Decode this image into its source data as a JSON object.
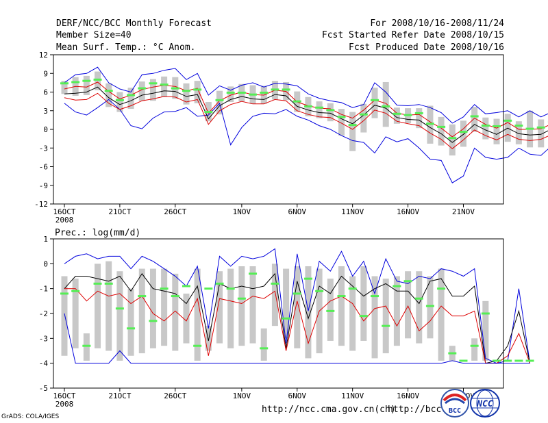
{
  "header": {
    "title": "DERF/NCC/BCC Monthly Forecast",
    "member_size": "Member Size=40",
    "variable": "Mean Surf. Temp.: °C Anom.",
    "period": "For 2008/10/16-2008/11/24",
    "started": "Fcst Started Refer Date 2008/10/15",
    "produced": "Fcst Produced Date 2008/10/16"
  },
  "footer": {
    "url1": "http://ncc.cma.gov.cn(ch)",
    "url2": "http://bcc.c",
    "credit": "GrADS: COLA/IGES",
    "logo1_text": "BCC",
    "logo2_text": "NCC"
  },
  "colors": {
    "max_line": "#0000dd",
    "min_line": "#dd0000",
    "mean_line": "#000000",
    "median_marker": "#55ee55",
    "box": "#c8c8c8"
  },
  "chart_data": [
    {
      "type": "box-line",
      "title": "Mean Surf. Temp.: °C Anom.",
      "x_tick_labels": [
        "16OCT",
        "21OCT",
        "26OCT",
        "1NOV",
        "6NOV",
        "11NOV",
        "16NOV",
        "21NOV"
      ],
      "x_year_label": "2008",
      "x_tick_days": [
        0,
        5,
        10,
        16,
        21,
        26,
        31,
        36
      ],
      "days": 40,
      "y_ticks": [
        12,
        9,
        6,
        3,
        0,
        -3,
        -6,
        -9,
        -12
      ],
      "ylim": [
        -12,
        12
      ],
      "series": [
        {
          "name": "max",
          "values": [
            4.2,
            2.8,
            2.3,
            3.5,
            4.8,
            3.2,
            0.6,
            0.1,
            1.8,
            2.8,
            2.9,
            3.5,
            2.1,
            2.3,
            4.2,
            -2.5,
            0.3,
            2.1,
            2.6,
            2.5,
            3.2,
            2.1,
            1.5,
            0.6,
            0.0,
            -1.0,
            -1.8,
            -2.1,
            -3.8,
            -1.2,
            -2.0,
            -1.5,
            -3.0,
            -4.8,
            -5.0,
            -8.6,
            -7.5,
            -3.0,
            -4.5,
            -4.8,
            -4.5,
            -3.0,
            -4.0,
            -4.2,
            -2.6
          ]
        },
        {
          "name": "max_env",
          "values": [
            7.5,
            8.8,
            9.0,
            10.0,
            7.5,
            6.5,
            6.0,
            8.8,
            9.0,
            9.5,
            9.8,
            8.0,
            9.0,
            5.5,
            7.0,
            6.3,
            7.1,
            7.5,
            6.8,
            7.4,
            7.3,
            7.0,
            5.7,
            5.0,
            4.6,
            4.3,
            3.5,
            4.0,
            7.5,
            6.0,
            3.9,
            3.8,
            4.0,
            3.5,
            2.7,
            1.0,
            2.0,
            4.0,
            2.5,
            2.7,
            3.0,
            2.0,
            3.0,
            2.0,
            2.8
          ]
        },
        {
          "name": "upper",
          "values": [
            6.5,
            6.9,
            6.8,
            7.6,
            6.1,
            4.9,
            5.5,
            6.4,
            6.8,
            7.1,
            6.9,
            6.2,
            6.6,
            2.6,
            4.6,
            5.5,
            6.0,
            5.6,
            5.5,
            6.3,
            6.1,
            4.4,
            3.8,
            3.4,
            3.3,
            2.4,
            1.8,
            3.1,
            4.7,
            4.2,
            2.6,
            2.3,
            2.4,
            1.2,
            0.2,
            -1.2,
            0.1,
            1.8,
            0.8,
            0.2,
            1.1,
            0.0,
            0.0,
            0.1,
            0.9
          ]
        },
        {
          "name": "mean",
          "values": [
            5.7,
            5.8,
            6.0,
            6.8,
            5.1,
            4.0,
            4.6,
            5.5,
            5.8,
            6.2,
            6.1,
            5.3,
            5.6,
            1.7,
            3.8,
            4.8,
            5.3,
            4.9,
            4.8,
            5.6,
            5.4,
            3.7,
            3.1,
            2.7,
            2.6,
            1.7,
            0.9,
            2.3,
            3.9,
            3.4,
            1.9,
            1.6,
            1.5,
            0.3,
            -0.7,
            -2.1,
            -0.8,
            0.8,
            -0.1,
            -0.8,
            0.2,
            -0.7,
            -0.9,
            -0.8,
            0.1
          ]
        },
        {
          "name": "lower",
          "values": [
            5.1,
            4.7,
            4.8,
            5.8,
            4.2,
            3.2,
            3.8,
            4.6,
            4.9,
            5.3,
            5.2,
            4.4,
            4.8,
            0.8,
            3.0,
            4.0,
            4.5,
            4.1,
            4.1,
            4.8,
            4.6,
            3.0,
            2.4,
            2.0,
            1.9,
            1.0,
            0.0,
            1.4,
            3.1,
            2.6,
            1.3,
            0.9,
            0.6,
            -0.6,
            -1.6,
            -3.1,
            -1.7,
            -0.1,
            -1.0,
            -1.7,
            -0.8,
            -1.6,
            -1.8,
            -1.6,
            -0.8
          ]
        },
        {
          "name": "median",
          "values": [
            7.4,
            7.6,
            7.8,
            8.0,
            6.2,
            4.7,
            5.5,
            6.6,
            7.4,
            7.2,
            6.6,
            6.2,
            6.4,
            2.8,
            4.7,
            5.9,
            5.9,
            5.6,
            5.9,
            6.4,
            6.4,
            4.5,
            3.7,
            3.5,
            3.1,
            2.0,
            0.7,
            2.4,
            4.7,
            3.7,
            2.5,
            2.3,
            2.6,
            0.9,
            0.4,
            -1.4,
            -0.4,
            2.1,
            0.6,
            0.5,
            1.4,
            0.6,
            0.1,
            0.3,
            1.2
          ]
        },
        {
          "name": "box_top",
          "values": [
            7.8,
            8.4,
            8.6,
            9.3,
            7.4,
            6.0,
            6.7,
            7.7,
            8.1,
            8.5,
            8.4,
            7.4,
            7.8,
            4.4,
            6.2,
            6.9,
            7.3,
            7.1,
            7.0,
            7.8,
            7.6,
            6.1,
            5.2,
            4.5,
            4.2,
            3.3,
            2.8,
            4.1,
            6.7,
            7.6,
            3.5,
            3.4,
            3.4,
            3.8,
            2.0,
            0.8,
            1.4,
            3.6,
            1.9,
            1.7,
            2.5,
            1.3,
            3.0,
            1.6,
            2.0
          ]
        },
        {
          "name": "box_bottom",
          "values": [
            5.7,
            5.4,
            5.5,
            6.3,
            3.6,
            2.8,
            3.3,
            4.6,
            4.6,
            5.2,
            4.9,
            4.0,
            4.2,
            1.3,
            2.4,
            4.4,
            4.5,
            4.1,
            4.1,
            4.8,
            4.7,
            2.8,
            2.1,
            1.8,
            1.3,
            -1.0,
            -3.5,
            -0.5,
            1.8,
            0.4,
            0.9,
            1.0,
            0.2,
            -2.3,
            -2.6,
            -4.2,
            -2.8,
            -0.4,
            -1.6,
            -2.4,
            -2.0,
            -2.4,
            -2.9,
            -2.9,
            -1.6
          ]
        }
      ]
    },
    {
      "type": "box-line",
      "title": "Prec.: log(mm/d)",
      "x_tick_labels": [
        "16OCT",
        "21OCT",
        "26OCT",
        "1NOV",
        "6NOV",
        "11NOV",
        "16NOV",
        "21NOV"
      ],
      "x_year_label": "2008",
      "x_tick_days": [
        0,
        5,
        10,
        16,
        21,
        26,
        31,
        36
      ],
      "days": 40,
      "y_ticks": [
        1,
        0,
        -1,
        -2,
        -3,
        -4,
        -5
      ],
      "ylim": [
        -5,
        1
      ],
      "series": [
        {
          "name": "max",
          "values": [
            0.0,
            0.3,
            0.4,
            0.2,
            0.3,
            0.3,
            -0.2,
            0.3,
            0.1,
            -0.2,
            -0.5,
            -0.9,
            -0.1,
            -2.6,
            0.3,
            -0.1,
            0.3,
            0.2,
            0.3,
            0.6,
            -3.2,
            0.4,
            -1.9,
            0.1,
            -0.3,
            0.5,
            -0.5,
            0.1,
            -1.2,
            0.2,
            -0.7,
            -0.8,
            -0.5,
            -0.6,
            -0.2,
            -0.3,
            -0.5,
            -0.2,
            -3.8,
            -4.0,
            -3.9,
            -1.0,
            -4.0
          ]
        },
        {
          "name": "mean",
          "values": [
            -1.0,
            -0.5,
            -0.5,
            -0.6,
            -0.7,
            -0.5,
            -1.1,
            -0.4,
            -1.0,
            -1.1,
            -1.2,
            -1.6,
            -0.9,
            -3.1,
            -0.8,
            -1.0,
            -0.9,
            -1.0,
            -0.9,
            -0.4,
            -3.4,
            -0.7,
            -2.2,
            -0.9,
            -1.2,
            -0.5,
            -0.9,
            -1.3,
            -1.0,
            -0.8,
            -1.1,
            -1.1,
            -1.6,
            -0.7,
            -0.6,
            -1.3,
            -1.3,
            -0.9,
            -4.0,
            -3.9,
            -3.3,
            -1.9,
            -4.0
          ]
        },
        {
          "name": "min",
          "values": [
            -1.0,
            -1.0,
            -1.5,
            -1.1,
            -1.3,
            -1.2,
            -1.6,
            -1.3,
            -2.0,
            -2.3,
            -1.9,
            -2.3,
            -1.4,
            -3.7,
            -1.4,
            -1.5,
            -1.6,
            -1.3,
            -1.4,
            -1.1,
            -3.5,
            -1.5,
            -3.2,
            -1.9,
            -1.5,
            -1.3,
            -1.6,
            -2.3,
            -1.8,
            -1.7,
            -2.5,
            -1.7,
            -2.7,
            -2.3,
            -1.7,
            -2.1,
            -2.1,
            -1.9,
            -4.0,
            -4.0,
            -3.7,
            -2.8,
            -4.0
          ]
        },
        {
          "name": "min_env",
          "values": [
            -2.0,
            -4.0,
            -4.0,
            -4.0,
            -4.0,
            -3.5,
            -4.0,
            -4.0,
            -4.0,
            -4.0,
            -4.0,
            -4.0,
            -4.0,
            -4.0,
            -4.0,
            -4.0,
            -4.0,
            -4.0,
            -4.0,
            -4.0,
            -4.0,
            -4.0,
            -4.0,
            -4.0,
            -4.0,
            -4.0,
            -4.0,
            -4.0,
            -4.0,
            -4.0,
            -4.0,
            -4.0,
            -4.0,
            -4.0,
            -4.0,
            -3.9,
            -4.0,
            -4.0,
            -4.0,
            -4.0,
            -4.0,
            -4.0,
            -4.0
          ]
        },
        {
          "name": "median",
          "values": [
            -1.2,
            -1.1,
            -3.3,
            -0.8,
            -0.8,
            -1.8,
            -2.6,
            -1.3,
            -2.3,
            -1.0,
            -1.3,
            -0.9,
            -3.3,
            -1.0,
            -0.8,
            -1.0,
            -1.4,
            -0.4,
            -3.4,
            -0.8,
            -2.2,
            -1.2,
            -0.6,
            -1.1,
            -1.9,
            -1.3,
            -1.0,
            -2.1,
            -1.3,
            -2.5,
            -0.9,
            -0.7,
            -1.4,
            -1.7,
            -1.0,
            -3.6,
            -3.9,
            -3.3,
            -2.0,
            -3.9,
            -3.9,
            -3.9,
            -3.9
          ]
        },
        {
          "name": "box_top",
          "values": [
            -0.5,
            -0.6,
            -2.8,
            0.0,
            0.1,
            -0.3,
            -1.0,
            -0.2,
            -0.2,
            -0.2,
            -0.4,
            -1.2,
            -0.2,
            -2.5,
            -0.3,
            -0.2,
            -0.1,
            -0.1,
            -2.6,
            0.0,
            -0.2,
            -0.1,
            -0.1,
            -0.2,
            -0.6,
            -0.1,
            -0.5,
            -0.1,
            -0.5,
            -0.6,
            -0.5,
            -0.3,
            -0.3,
            -0.5,
            -0.2,
            -3.3,
            -3.9,
            -3.0,
            -1.5,
            -3.9,
            -3.9,
            -3.9,
            -3.9
          ]
        },
        {
          "name": "box_bottom",
          "values": [
            -3.7,
            -3.4,
            -3.9,
            -3.4,
            -3.5,
            -3.9,
            -3.7,
            -3.6,
            -3.4,
            -3.3,
            -3.5,
            -3.2,
            -3.9,
            -3.5,
            -3.2,
            -3.4,
            -3.3,
            -3.2,
            -3.9,
            -2.5,
            -3.0,
            -3.4,
            -3.8,
            -3.6,
            -3.1,
            -3.3,
            -3.5,
            -3.1,
            -3.8,
            -3.6,
            -3.3,
            -3.0,
            -3.2,
            -3.0,
            -3.9,
            -3.9,
            -3.9,
            -3.9,
            -3.9,
            -3.9,
            -3.9,
            -3.9,
            -3.9
          ]
        }
      ]
    }
  ]
}
